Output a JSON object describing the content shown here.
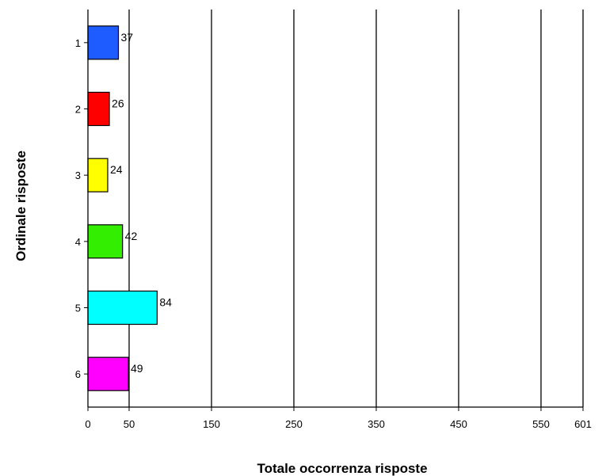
{
  "chart_data": {
    "type": "bar",
    "orientation": "horizontal",
    "categories": [
      "1",
      "2",
      "3",
      "4",
      "5",
      "6"
    ],
    "values": [
      37,
      26,
      24,
      42,
      84,
      49
    ],
    "colors": [
      "#1f5cff",
      "#ff0000",
      "#ffff00",
      "#33ee00",
      "#00ffff",
      "#ff00ff"
    ],
    "xlabel": "Totale occorrenza risposte",
    "ylabel": "Ordinale risposte",
    "xticks": [
      0,
      50,
      150,
      250,
      350,
      450,
      550,
      601
    ],
    "xlim": [
      0,
      601
    ],
    "grid": "vertical",
    "data_labels": true
  }
}
